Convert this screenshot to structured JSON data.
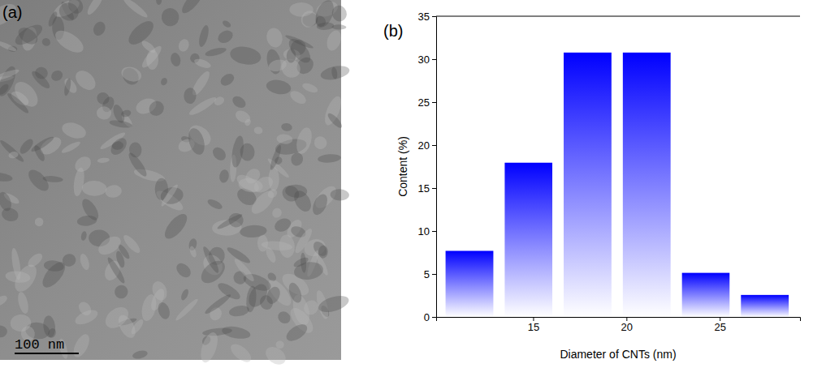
{
  "image_panel": {
    "label": "(a)",
    "scale_bar": "100 nm"
  },
  "chart_data": {
    "type": "histogram",
    "label": "(b)",
    "x_label": "Diameter of CNTs (nm)",
    "y_label": "Content (%)",
    "bins": [
      10,
      13.17,
      16.33,
      19.5,
      22.67,
      25.83,
      29
    ],
    "values": [
      7.69,
      17.95,
      30.77,
      30.77,
      5.13,
      2.56
    ],
    "color": "#0000ff",
    "xlim": [
      9.8,
      29.3
    ],
    "xticks": [
      15,
      20,
      25
    ],
    "ylim": [
      0,
      35
    ],
    "yticks": [
      0,
      5,
      10,
      15,
      20,
      25,
      30,
      35
    ]
  }
}
